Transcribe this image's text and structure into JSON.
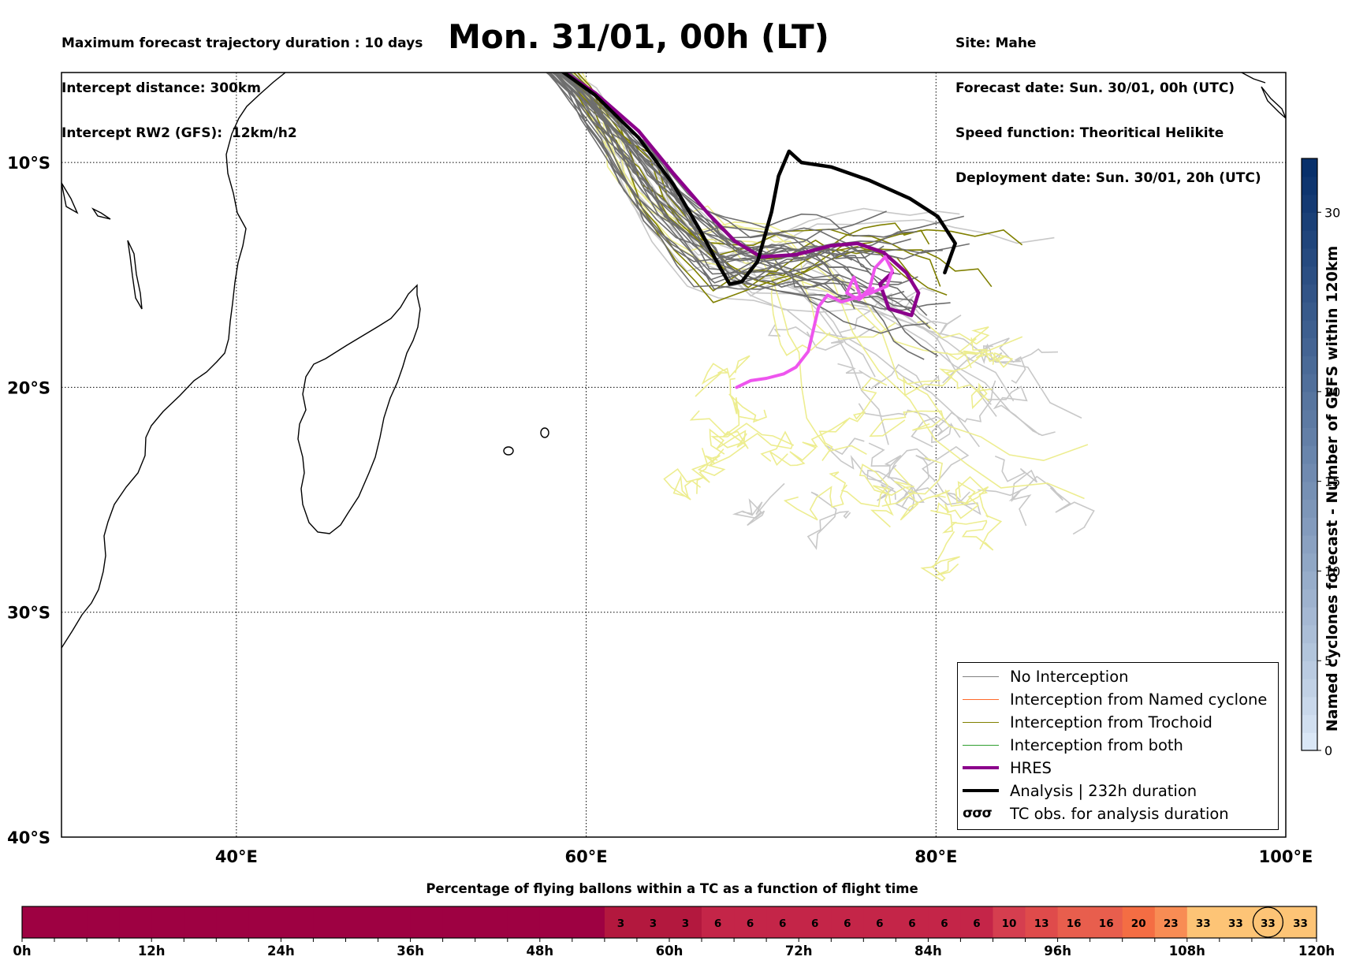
{
  "header": {
    "left_lines": [
      "Maximum forecast trajectory duration : 10 days",
      "Intercept distance: 300km",
      "Intercept RW2 (GFS):  12km/h2"
    ],
    "title": "Mon. 31/01, 00h (LT)",
    "right_lines": [
      "Site: Mahe",
      "Forecast date: Sun. 30/01, 00h (UTC)",
      "Speed function: Theoritical Helikite",
      "Deployment date: Sun. 30/01, 20h (UTC)"
    ]
  },
  "chart_data": [
    {
      "type": "line",
      "title": "Mon. 31/01, 00h (LT)",
      "x_range": [
        30,
        100
      ],
      "y_range": [
        -40,
        -6
      ],
      "x_ticks": [
        40,
        60,
        80,
        100
      ],
      "x_tick_labels": [
        "40°E",
        "60°E",
        "80°E",
        "100°E"
      ],
      "y_ticks": [
        -10,
        -20,
        -30,
        -40
      ],
      "y_tick_labels": [
        "10°S",
        "20°S",
        "30°S",
        "40°S"
      ],
      "grid": true,
      "legend_position": "bottom-right",
      "legend": [
        {
          "label": "No Interception",
          "color": "#808080"
        },
        {
          "label": "Interception from Named cyclone",
          "color": "#ff6a2a"
        },
        {
          "label": "Interception from Trochoid",
          "color": "#808000"
        },
        {
          "label": "Interception from both",
          "color": "#2e9e2e"
        },
        {
          "label": "HRES",
          "color": "#8b008b"
        },
        {
          "label": "Analysis | 232h duration",
          "color": "#000000"
        },
        {
          "label": "TC obs. for analysis duration",
          "color": "#000000",
          "symbol": "σσσ"
        }
      ],
      "launch_point": [
        55.4,
        -4.6
      ],
      "series": [
        {
          "name": "HRES",
          "color": "#8b008b",
          "points": [
            [
              55.4,
              -4.6
            ],
            [
              58,
              -5.6
            ],
            [
              60.5,
              -6.9
            ],
            [
              63,
              -8.6
            ],
            [
              65,
              -10.5
            ],
            [
              67,
              -12.3
            ],
            [
              68.5,
              -13.5
            ],
            [
              70,
              -14.2
            ],
            [
              72,
              -14.1
            ],
            [
              74,
              -13.7
            ],
            [
              75.5,
              -13.6
            ],
            [
              77,
              -14.0
            ],
            [
              78.3,
              -14.9
            ],
            [
              79,
              -15.8
            ],
            [
              78.6,
              -16.8
            ],
            [
              77.3,
              -16.5
            ],
            [
              76.8,
              -15.4
            ],
            [
              77.5,
              -14.9
            ]
          ]
        },
        {
          "name": "Analysis | 232h duration",
          "color": "#000000",
          "points": [
            [
              55.4,
              -4.6
            ],
            [
              58,
              -5.6
            ],
            [
              60.5,
              -7.0
            ],
            [
              63,
              -8.9
            ],
            [
              65,
              -11.0
            ],
            [
              66.5,
              -13.0
            ],
            [
              67.6,
              -14.6
            ],
            [
              68.2,
              -15.4
            ],
            [
              68.9,
              -15.3
            ],
            [
              69.8,
              -14.4
            ],
            [
              70.6,
              -12.2
            ],
            [
              71,
              -10.6
            ],
            [
              71.6,
              -9.5
            ],
            [
              72.3,
              -10.0
            ],
            [
              74,
              -10.2
            ],
            [
              76.2,
              -10.8
            ],
            [
              78.5,
              -11.6
            ],
            [
              80.1,
              -12.4
            ],
            [
              81.1,
              -13.6
            ],
            [
              80.5,
              -14.9
            ]
          ]
        },
        {
          "name": "TC obs. for analysis duration",
          "color": "#ee55ee",
          "points": [
            [
              68.6,
              -20.0
            ],
            [
              69.4,
              -19.7
            ],
            [
              70.3,
              -19.6
            ],
            [
              71.3,
              -19.4
            ],
            [
              72,
              -19.1
            ],
            [
              72.7,
              -18.4
            ],
            [
              73,
              -17.4
            ],
            [
              73.3,
              -16.4
            ],
            [
              73.8,
              -15.9
            ],
            [
              74.6,
              -16.2
            ],
            [
              75.5,
              -16.0
            ],
            [
              76.3,
              -15.8
            ],
            [
              77.2,
              -15.5
            ],
            [
              77.5,
              -14.8
            ],
            [
              77.1,
              -14.2
            ],
            [
              76.5,
              -14.7
            ],
            [
              76.2,
              -15.6
            ],
            [
              75.7,
              -16.0
            ],
            [
              75.3,
              -15.1
            ],
            [
              74.9,
              -15.8
            ],
            [
              75.6,
              -16.1
            ],
            [
              76.4,
              -15.6
            ]
          ]
        }
      ]
    },
    {
      "type": "heatmap",
      "title": "",
      "ylabel": "Named cyclones forecast - Number of GEFS within 120km",
      "range": [
        0,
        33
      ],
      "ticks": [
        0,
        5,
        10,
        15,
        20,
        30
      ],
      "colors": [
        "#dae7f6",
        "#08306b"
      ]
    },
    {
      "type": "heatmap",
      "title": "Percentage of flying ballons within a TC as a function of flight time",
      "x_range": [
        0,
        120
      ],
      "x_ticks": [
        0,
        12,
        24,
        36,
        48,
        60,
        72,
        84,
        96,
        108,
        120
      ],
      "x_tick_labels": [
        "0h",
        "12h",
        "24h",
        "36h",
        "48h",
        "60h",
        "72h",
        "84h",
        "96h",
        "108h",
        "120h"
      ],
      "values": [
        0,
        0,
        0,
        0,
        0,
        0,
        0,
        0,
        0,
        0,
        0,
        0,
        0,
        0,
        0,
        0,
        0,
        0,
        3,
        3,
        3,
        6,
        6,
        6,
        6,
        6,
        6,
        6,
        6,
        6,
        10,
        13,
        16,
        16,
        20,
        23,
        33,
        33,
        33,
        33
      ],
      "labeled_from_index": 18,
      "highlighted_index": 38
    }
  ]
}
